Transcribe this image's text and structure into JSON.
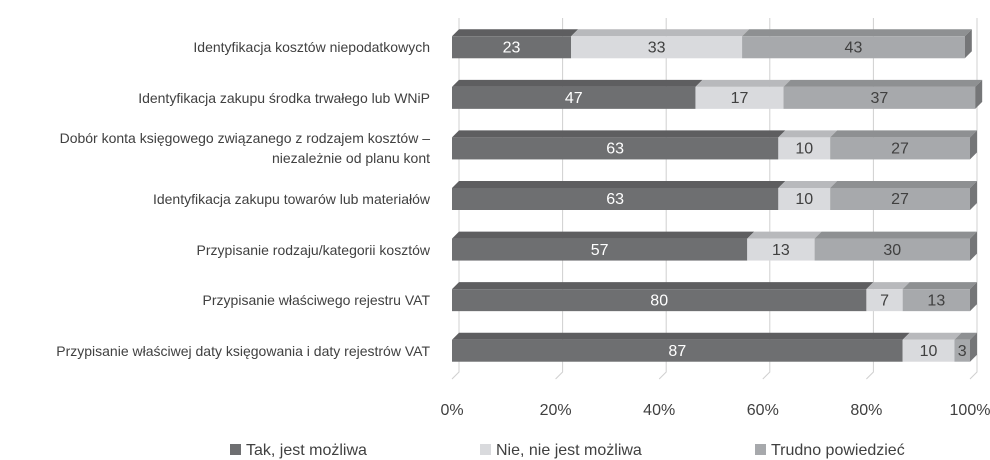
{
  "chart_data": {
    "type": "stacked-bar-horizontal",
    "categories": [
      "Identyfikacja kosztów niepodatkowych",
      "Identyfikacja zakupu środka trwałego lub WNiP",
      "Dobór konta księgowego związanego z rodzajem kosztów – niezależnie od planu kont",
      "Identyfikacja zakupu towarów lub materiałów",
      "Przypisanie rodzaju/kategorii kosztów",
      "Przypisanie właściwego rejestru VAT",
      "Przypisanie właściwej daty księgowania i daty rejestrów VAT"
    ],
    "series": [
      {
        "name": "Tak, jest możliwa",
        "color": "#6e6f71",
        "values": [
          23,
          47,
          63,
          63,
          57,
          80,
          87
        ]
      },
      {
        "name": "Nie, nie jest możliwa",
        "color": "#d9dadd",
        "values": [
          33,
          17,
          10,
          10,
          13,
          7,
          10
        ]
      },
      {
        "name": "Trudno powiedzieć",
        "color": "#a7a9ac",
        "values": [
          43,
          37,
          27,
          27,
          30,
          13,
          3
        ]
      }
    ],
    "xlim": [
      0,
      100
    ],
    "xticks": [
      {
        "value": 0,
        "label": "0%"
      },
      {
        "value": 20,
        "label": "20%"
      },
      {
        "value": 40,
        "label": "40%"
      },
      {
        "value": 60,
        "label": "60%"
      },
      {
        "value": 80,
        "label": "80%"
      },
      {
        "value": 100,
        "label": "100%"
      }
    ],
    "grid": true,
    "legend": "bottom"
  }
}
